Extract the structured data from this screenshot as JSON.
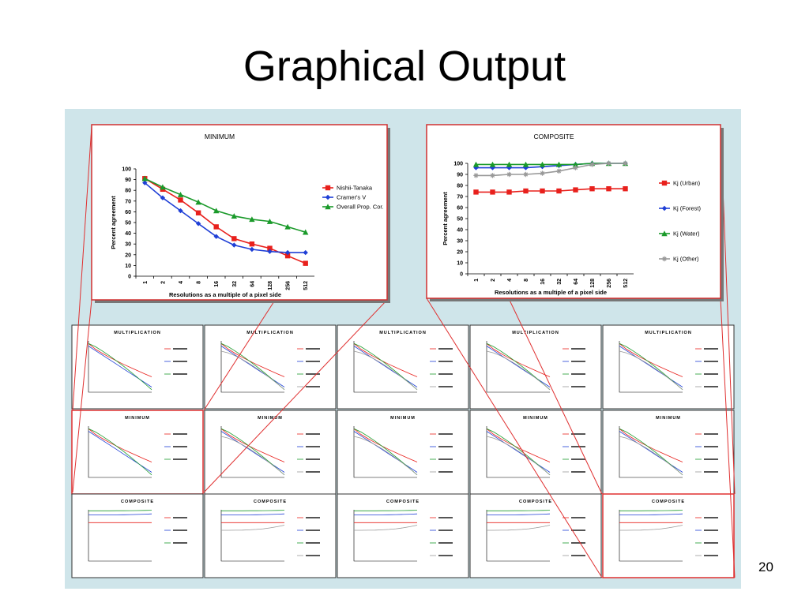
{
  "title": "Graphical Output",
  "page_number": "20",
  "chart_data": [
    {
      "type": "line",
      "title": "MINIMUM",
      "xlabel": "Resolutions as a multiple of a pixel side",
      "ylabel": "Percent agreement",
      "categories": [
        "1",
        "2",
        "4",
        "8",
        "16",
        "32",
        "64",
        "128",
        "256",
        "512"
      ],
      "ylim": [
        0,
        100
      ],
      "yticks": [
        0,
        10,
        20,
        30,
        40,
        50,
        60,
        70,
        80,
        90,
        100
      ],
      "grid": false,
      "series": [
        {
          "name": "Nishii-Tanaka",
          "color": "#e8201c",
          "marker": "square",
          "values": [
            91,
            81,
            71,
            59,
            46,
            35,
            30,
            26,
            19,
            12
          ]
        },
        {
          "name": "Cramer's V",
          "color": "#1f3fd6",
          "marker": "diamond",
          "values": [
            87,
            73,
            61,
            49,
            37,
            29,
            25,
            23,
            22,
            22
          ]
        },
        {
          "name": "Overall Prop. Cor.",
          "color": "#1a9a2a",
          "marker": "triangle",
          "values": [
            91,
            83,
            76,
            69,
            61,
            56,
            53,
            51,
            46,
            41
          ]
        }
      ]
    },
    {
      "type": "line",
      "title": "COMPOSITE",
      "xlabel": "Resolutions as a multiple of a pixel side",
      "ylabel": "Percent agreement",
      "categories": [
        "1",
        "2",
        "4",
        "8",
        "16",
        "32",
        "64",
        "128",
        "256",
        "512"
      ],
      "ylim": [
        0,
        100
      ],
      "yticks": [
        0,
        10,
        20,
        30,
        40,
        50,
        60,
        70,
        80,
        90,
        100
      ],
      "grid": false,
      "series": [
        {
          "name": "Kj (Urban)",
          "color": "#e8201c",
          "marker": "square",
          "values": [
            74,
            74,
            74,
            75,
            75,
            75,
            76,
            77,
            77,
            77
          ]
        },
        {
          "name": "Kj (Forest)",
          "color": "#1f3fd6",
          "marker": "diamond",
          "values": [
            96,
            96,
            96,
            96,
            97,
            98,
            99,
            100,
            100,
            100
          ]
        },
        {
          "name": "Kj (Water)",
          "color": "#1a9a2a",
          "marker": "triangle",
          "values": [
            99,
            99,
            99,
            99,
            99,
            99,
            99,
            100,
            100,
            100
          ]
        },
        {
          "name": "Kj (Other)",
          "color": "#999999",
          "marker": "cross",
          "values": [
            89,
            89,
            90,
            90,
            91,
            93,
            96,
            99,
            100,
            100
          ]
        }
      ]
    }
  ],
  "thumbnail_titles": [
    "MULTIPLICATION",
    "MULTIPLICATION",
    "MULTIPLICATION",
    "MULTIPLICATION",
    "MULTIPLICATION",
    "MINIMUM",
    "MINIMUM",
    "MINIMUM",
    "MINIMUM",
    "MINIMUM",
    "COMPOSITE",
    "COMPOSITE",
    "COMPOSITE",
    "COMPOSITE",
    "COMPOSITE"
  ]
}
